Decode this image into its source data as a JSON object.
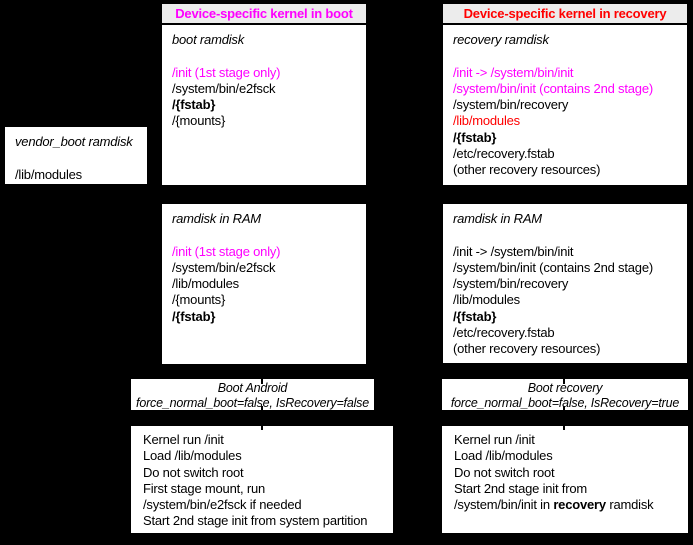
{
  "diagram": {
    "background": "#000000",
    "colors": {
      "magenta": "#ff00ff",
      "red": "#ff0000",
      "header_bg": "#ececec",
      "box_bg": "#ffffff",
      "text": "#000000"
    },
    "vendor_box": {
      "title": "vendor_boot ramdisk",
      "lines": [
        {
          "text": "",
          "style": "blank"
        },
        {
          "text": "/lib/modules",
          "style": "plain"
        }
      ]
    },
    "boot": {
      "header": {
        "label": "Device-specific kernel in boot",
        "color": "#ff00ff"
      },
      "ramdisk_box": {
        "title": "boot ramdisk",
        "lines": [
          {
            "text": "",
            "style": "blank"
          },
          {
            "text": "/init (1st stage only)",
            "style": "magenta"
          },
          {
            "text": "/system/bin/e2fsck",
            "style": "plain"
          },
          {
            "text": "/{fstab}",
            "style": "bold"
          },
          {
            "text": "/{mounts}",
            "style": "plain"
          }
        ]
      },
      "ram_box": {
        "title": "ramdisk in RAM",
        "lines": [
          {
            "text": "",
            "style": "blank"
          },
          {
            "text": "/init (1st stage only)",
            "style": "magenta"
          },
          {
            "text": "/system/bin/e2fsck",
            "style": "plain"
          },
          {
            "text": "/lib/modules",
            "style": "plain"
          },
          {
            "text": "/{mounts}",
            "style": "plain"
          },
          {
            "text": "/{fstab}",
            "style": "bold"
          }
        ]
      },
      "label_box": {
        "line1": "Boot Android",
        "line2": "force_normal_boot=false, IsRecovery=false"
      },
      "steps_box": {
        "lines": [
          {
            "text": "Kernel run /init",
            "style": "plain"
          },
          {
            "text": "Load /lib/modules",
            "style": "plain"
          },
          {
            "text": "Do not switch root",
            "style": "plain"
          },
          {
            "text": "First stage mount, run",
            "style": "plain"
          },
          {
            "text": "/system/bin/e2fsck if needed",
            "style": "plain"
          },
          {
            "text": "Start 2nd stage init from system partition",
            "style": "plain"
          }
        ]
      }
    },
    "recovery": {
      "header": {
        "label": "Device-specific kernel in recovery",
        "color": "#ff0000"
      },
      "ramdisk_box": {
        "title": "recovery ramdisk",
        "lines": [
          {
            "text": "",
            "style": "blank"
          },
          {
            "text": "/init -> /system/bin/init",
            "style": "magenta"
          },
          {
            "text": "/system/bin/init (contains 2nd stage)",
            "style": "magenta"
          },
          {
            "text": "/system/bin/recovery",
            "style": "plain"
          },
          {
            "text": "/lib/modules",
            "style": "red"
          },
          {
            "text": "/{fstab}",
            "style": "bold"
          },
          {
            "text": "/etc/recovery.fstab",
            "style": "plain"
          },
          {
            "text": "(other recovery resources)",
            "style": "plain"
          }
        ]
      },
      "ram_box": {
        "title": "ramdisk in RAM",
        "lines": [
          {
            "text": "",
            "style": "blank"
          },
          {
            "text": "/init -> /system/bin/init",
            "style": "plain"
          },
          {
            "text": "/system/bin/init (contains 2nd stage)",
            "style": "plain"
          },
          {
            "text": "/system/bin/recovery",
            "style": "plain"
          },
          {
            "text": "/lib/modules",
            "style": "plain"
          },
          {
            "text": "/{fstab}",
            "style": "bold"
          },
          {
            "text": "/etc/recovery.fstab",
            "style": "plain"
          },
          {
            "text": "(other recovery resources)",
            "style": "plain"
          }
        ]
      },
      "label_box": {
        "line1": "Boot recovery",
        "line2": "force_normal_boot=false, IsRecovery=true"
      },
      "steps_box": {
        "lines": [
          {
            "text": "Kernel run /init",
            "style": "plain"
          },
          {
            "text": "Load /lib/modules",
            "style": "plain"
          },
          {
            "text": "Do not switch root",
            "style": "plain"
          },
          {
            "text": "Start 2nd stage init from",
            "style": "plain"
          },
          {
            "parts": [
              {
                "text": "/system/bin/init in "
              },
              {
                "text": "recovery",
                "bold": true
              },
              {
                "text": " ramdisk"
              }
            ],
            "style": "plain"
          }
        ]
      }
    }
  }
}
